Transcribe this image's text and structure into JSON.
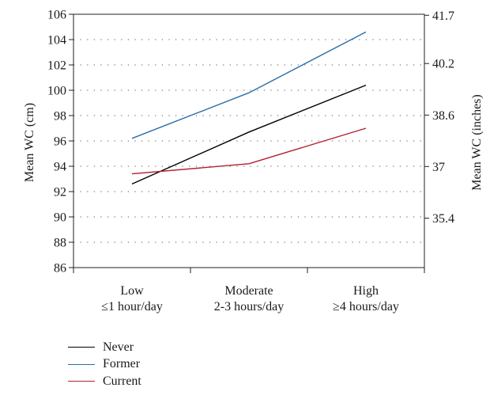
{
  "chart_data": {
    "type": "line",
    "title": "",
    "categories": [
      [
        "Low",
        "≤1 hour/day"
      ],
      [
        "Moderate",
        "2-3 hours/day"
      ],
      [
        "High",
        "≥4 hours/day"
      ]
    ],
    "ylabel": "Mean WC (cm)",
    "ylabel_right": "Mean WC (inches)",
    "ylim": [
      86,
      106
    ],
    "yticks": [
      86,
      88,
      90,
      92,
      94,
      96,
      98,
      100,
      102,
      104,
      106
    ],
    "yticks_right": [
      {
        "label": "35.4",
        "value_cm": 89.9
      },
      {
        "label": "37",
        "value_cm": 93.98
      },
      {
        "label": "38.6",
        "value_cm": 98.04
      },
      {
        "label": "40.2",
        "value_cm": 102.11
      },
      {
        "label": "41.7",
        "value_cm": 105.92
      }
    ],
    "grid": true,
    "legend_position": "bottom-left",
    "series": [
      {
        "name": "Never",
        "color": "#000000",
        "values": [
          92.6,
          96.7,
          100.4
        ]
      },
      {
        "name": "Former",
        "color": "#2a6ead",
        "values": [
          96.2,
          99.8,
          104.6
        ]
      },
      {
        "name": "Current",
        "color": "#b22030",
        "values": [
          93.4,
          94.2,
          97.0
        ]
      }
    ]
  }
}
